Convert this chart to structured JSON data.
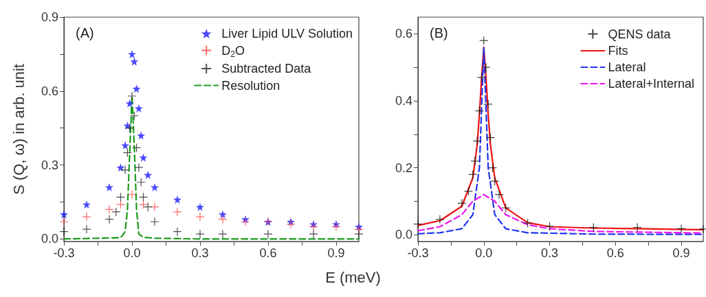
{
  "chart_data": [
    {
      "type": "line",
      "title": "(A)",
      "xlabel": "E (meV)",
      "ylabel": "S (Q, ω) in arb. unit",
      "legend": "top right",
      "grid": false,
      "xlim": [
        -0.3,
        1.0
      ],
      "ylim": [
        -0.01,
        0.9
      ],
      "xticks": [
        -0.3,
        {
          "value": -0.15,
          "label": null
        },
        {
          "value": 0,
          "label": "0.0"
        },
        {
          "value": 0.15,
          "label": null
        },
        0.3,
        {
          "value": 0.45,
          "label": null
        },
        0.6,
        {
          "value": 0.75,
          "label": null
        },
        0.9
      ],
      "yticks": [
        {
          "value": 0,
          "label": "0.0"
        },
        {
          "value": 0.15,
          "label": null
        },
        0.3,
        {
          "value": 0.45,
          "label": null
        },
        0.6,
        {
          "value": 0.75,
          "label": null
        },
        0.9
      ],
      "series": [
        {
          "name": "Liver Lipid ULV Solution",
          "type": "scatter",
          "marker": "star",
          "color": "#1a1aff",
          "x": [
            -0.3,
            -0.2,
            -0.1,
            -0.05,
            -0.03,
            -0.02,
            -0.01,
            0,
            0.01,
            0.02,
            0.03,
            0.04,
            0.05,
            0.07,
            0.1,
            0.2,
            0.3,
            0.4,
            0.5,
            0.6,
            0.7,
            0.8,
            0.9,
            1.0
          ],
          "values": [
            0.1,
            0.14,
            0.21,
            0.29,
            0.38,
            0.46,
            0.55,
            0.75,
            0.72,
            0.61,
            0.53,
            0.42,
            0.33,
            0.26,
            0.21,
            0.16,
            0.13,
            0.1,
            0.08,
            0.07,
            0.07,
            0.06,
            0.06,
            0.05
          ]
        },
        {
          "name": "D$_{2}$O",
          "type": "scatter",
          "marker": "cross",
          "color": "#ff4040",
          "x": [
            -0.3,
            -0.2,
            -0.1,
            -0.05,
            0,
            0.05,
            0.1,
            0.2,
            0.3,
            0.4,
            0.5,
            0.6,
            0.7,
            0.8,
            0.9,
            1.0
          ],
          "values": [
            0.07,
            0.09,
            0.12,
            0.14,
            0.18,
            0.14,
            0.13,
            0.11,
            0.09,
            0.08,
            0.07,
            0.07,
            0.06,
            0.05,
            0.05,
            0.04
          ]
        },
        {
          "name": "Subtracted Data",
          "type": "scatter",
          "marker": "cross",
          "color": "#222222",
          "x": [
            -0.3,
            -0.2,
            -0.1,
            -0.07,
            -0.05,
            -0.03,
            -0.02,
            -0.01,
            0,
            0.01,
            0.02,
            0.03,
            0.04,
            0.05,
            0.07,
            0.1,
            0.2,
            0.3,
            0.4,
            0.6,
            0.8,
            1.0
          ],
          "values": [
            0.03,
            0.04,
            0.08,
            0.11,
            0.17,
            0.28,
            0.35,
            0.45,
            0.58,
            0.5,
            0.37,
            0.29,
            0.23,
            0.17,
            0.13,
            0.07,
            0.03,
            0.02,
            0.02,
            0.02,
            0.02,
            0.02
          ]
        },
        {
          "name": "Resolution",
          "line_style": "dashed",
          "marker": "none",
          "color": "#1a9a1a",
          "x": [
            -0.3,
            -0.05,
            -0.03,
            -0.02,
            -0.01,
            0,
            0.01,
            0.02,
            0.03,
            0.05,
            0.1,
            0.3,
            1.0
          ],
          "values": [
            0,
            0.005,
            0.03,
            0.12,
            0.35,
            0.58,
            0.38,
            0.12,
            0.02,
            0.007,
            0.003,
            0,
            0
          ]
        }
      ]
    },
    {
      "type": "line",
      "title": "(B)",
      "legend": "top right",
      "grid": false,
      "xlim": [
        -0.3,
        1.0
      ],
      "ylim": [
        -0.02,
        0.65
      ],
      "xticks": [
        -0.3,
        {
          "value": -0.15,
          "label": null
        },
        {
          "value": 0,
          "label": "0.0"
        },
        {
          "value": 0.15,
          "label": null
        },
        0.3,
        {
          "value": 0.45,
          "label": null
        },
        0.6,
        {
          "value": 0.75,
          "label": null
        },
        0.9
      ],
      "yticks": [
        {
          "value": 0,
          "label": "0.0"
        },
        {
          "value": 0.1,
          "label": null
        },
        0.2,
        {
          "value": 0.3,
          "label": null
        },
        0.4,
        {
          "value": 0.5,
          "label": null
        },
        0.6
      ],
      "series": [
        {
          "name": "QENS data",
          "type": "scatter",
          "marker": "cross",
          "color": "#111111",
          "x": [
            -0.3,
            -0.2,
            -0.1,
            -0.07,
            -0.05,
            -0.04,
            -0.03,
            -0.02,
            -0.01,
            0,
            0.01,
            0.02,
            0.03,
            0.04,
            0.05,
            0.07,
            0.1,
            0.2,
            0.3,
            0.5,
            0.7,
            0.9,
            1.0
          ],
          "values": [
            0.032,
            0.046,
            0.094,
            0.13,
            0.18,
            0.22,
            0.28,
            0.37,
            0.47,
            0.58,
            0.5,
            0.39,
            0.29,
            0.2,
            0.16,
            0.12,
            0.08,
            0.035,
            0.025,
            0.022,
            0.022,
            0.018,
            0.017
          ]
        },
        {
          "name": "Fits",
          "line_style": "solid",
          "marker": "none",
          "color": "#ee1111",
          "x": [
            -0.3,
            -0.2,
            -0.1,
            -0.05,
            -0.03,
            -0.02,
            -0.01,
            0,
            0.01,
            0.02,
            0.03,
            0.05,
            0.1,
            0.2,
            0.3,
            0.5,
            0.7,
            1.0
          ],
          "values": [
            0.028,
            0.042,
            0.085,
            0.17,
            0.27,
            0.36,
            0.47,
            0.56,
            0.47,
            0.36,
            0.27,
            0.17,
            0.08,
            0.036,
            0.024,
            0.02,
            0.018,
            0.015
          ]
        },
        {
          "name": "Lateral",
          "line_style": "dashed",
          "marker": "none",
          "color": "#2233ee",
          "x": [
            -0.3,
            -0.2,
            -0.1,
            -0.05,
            -0.02,
            -0.01,
            0,
            0.01,
            0.02,
            0.05,
            0.1,
            0.2,
            0.5,
            1.0
          ],
          "values": [
            0.003,
            0.006,
            0.018,
            0.06,
            0.2,
            0.38,
            0.56,
            0.38,
            0.2,
            0.06,
            0.018,
            0.006,
            0.002,
            0.001
          ]
        },
        {
          "name": "Lateral+Internal",
          "line_style": "dashed",
          "marker": "none",
          "color": "#ee11ee",
          "x": [
            -0.3,
            -0.2,
            -0.1,
            -0.05,
            0,
            0.05,
            0.1,
            0.2,
            0.3,
            0.5,
            1.0
          ],
          "values": [
            0.012,
            0.024,
            0.06,
            0.1,
            0.12,
            0.1,
            0.06,
            0.03,
            0.018,
            0.01,
            0.005
          ]
        }
      ]
    }
  ]
}
